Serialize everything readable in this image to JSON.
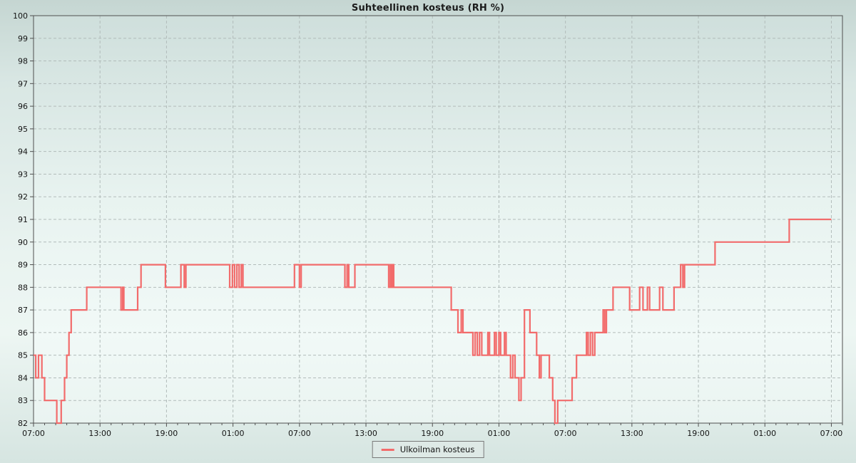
{
  "chart_data": {
    "type": "line",
    "title": "Suhteellinen kosteus (RH %)",
    "y_axis": {
      "min": 82,
      "max": 100,
      "tick_step": 1,
      "tick_labels": [
        "100",
        "99",
        "98",
        "97",
        "96",
        "95",
        "94",
        "93",
        "92",
        "91",
        "90",
        "89",
        "88",
        "87",
        "86",
        "85",
        "84",
        "83",
        "82"
      ]
    },
    "x_axis": {
      "domain_hours": [
        0,
        73
      ],
      "major_step_hours": 6,
      "minor_step_hours": 1,
      "tick_labels": [
        "07:00",
        "13:00",
        "19:00",
        "01:00",
        "07:00",
        "13:00",
        "19:00",
        "01:00",
        "07:00",
        "13:00",
        "19:00",
        "01:00",
        "07:00"
      ]
    },
    "grid": {
      "dashed": true,
      "horizontal": true,
      "vertical": true
    },
    "legend": {
      "label": "Ulkoilman kosteus",
      "position": "bottom-center"
    },
    "series": [
      {
        "name": "Ulkoilman kosteus",
        "unit": "RH %",
        "color": "#f26b6b",
        "step": true,
        "points_hours_value": [
          [
            0,
            85
          ],
          [
            0.2,
            84
          ],
          [
            0.45,
            85
          ],
          [
            0.75,
            84
          ],
          [
            1.0,
            83
          ],
          [
            2.1,
            82
          ],
          [
            2.5,
            83
          ],
          [
            2.8,
            84
          ],
          [
            3.0,
            85
          ],
          [
            3.2,
            86
          ],
          [
            3.4,
            87
          ],
          [
            4.8,
            88
          ],
          [
            7.9,
            87
          ],
          [
            8.05,
            88
          ],
          [
            8.15,
            87
          ],
          [
            9.4,
            88
          ],
          [
            9.7,
            89
          ],
          [
            11.9,
            88
          ],
          [
            13.3,
            89
          ],
          [
            13.6,
            88
          ],
          [
            13.75,
            89
          ],
          [
            17.7,
            88
          ],
          [
            17.95,
            89
          ],
          [
            18.15,
            88
          ],
          [
            18.35,
            89
          ],
          [
            18.55,
            88
          ],
          [
            18.75,
            89
          ],
          [
            18.9,
            88
          ],
          [
            23.55,
            89
          ],
          [
            24.0,
            88
          ],
          [
            24.15,
            89
          ],
          [
            28.1,
            88
          ],
          [
            28.3,
            89
          ],
          [
            28.45,
            88
          ],
          [
            29.0,
            89
          ],
          [
            32.05,
            88
          ],
          [
            32.2,
            89
          ],
          [
            32.3,
            88
          ],
          [
            32.4,
            89
          ],
          [
            32.5,
            88
          ],
          [
            37.7,
            87
          ],
          [
            38.3,
            86
          ],
          [
            38.6,
            87
          ],
          [
            38.75,
            86
          ],
          [
            39.65,
            85
          ],
          [
            39.85,
            86
          ],
          [
            40.05,
            85
          ],
          [
            40.25,
            86
          ],
          [
            40.45,
            85
          ],
          [
            41.0,
            86
          ],
          [
            41.15,
            85
          ],
          [
            41.6,
            86
          ],
          [
            41.75,
            85
          ],
          [
            42.0,
            86
          ],
          [
            42.15,
            85
          ],
          [
            42.5,
            86
          ],
          [
            42.65,
            85
          ],
          [
            43.05,
            84
          ],
          [
            43.25,
            85
          ],
          [
            43.45,
            84
          ],
          [
            43.8,
            83
          ],
          [
            44.0,
            84
          ],
          [
            44.3,
            87
          ],
          [
            44.8,
            86
          ],
          [
            45.4,
            85
          ],
          [
            45.65,
            84
          ],
          [
            45.8,
            85
          ],
          [
            46.55,
            84
          ],
          [
            46.85,
            83
          ],
          [
            47.05,
            82
          ],
          [
            47.3,
            83
          ],
          [
            48.6,
            84
          ],
          [
            49.0,
            85
          ],
          [
            49.9,
            86
          ],
          [
            50.05,
            85
          ],
          [
            50.25,
            86
          ],
          [
            50.45,
            85
          ],
          [
            50.65,
            86
          ],
          [
            51.4,
            87
          ],
          [
            51.55,
            86
          ],
          [
            51.7,
            87
          ],
          [
            52.3,
            88
          ],
          [
            53.8,
            87
          ],
          [
            54.7,
            88
          ],
          [
            55.0,
            87
          ],
          [
            55.4,
            88
          ],
          [
            55.6,
            87
          ],
          [
            56.5,
            88
          ],
          [
            56.8,
            87
          ],
          [
            57.8,
            88
          ],
          [
            58.4,
            89
          ],
          [
            58.6,
            88
          ],
          [
            58.75,
            89
          ],
          [
            61.5,
            90
          ],
          [
            68.2,
            91
          ],
          [
            72,
            91
          ]
        ]
      }
    ]
  },
  "colors": {
    "line": "#f26b6b",
    "plot_border": "#4f4f4f",
    "gridline": "#b2bcba",
    "tick": "#4f4f4f",
    "text": "#141414",
    "legend_bg": "#dee9e6",
    "legend_border": "#787878"
  }
}
